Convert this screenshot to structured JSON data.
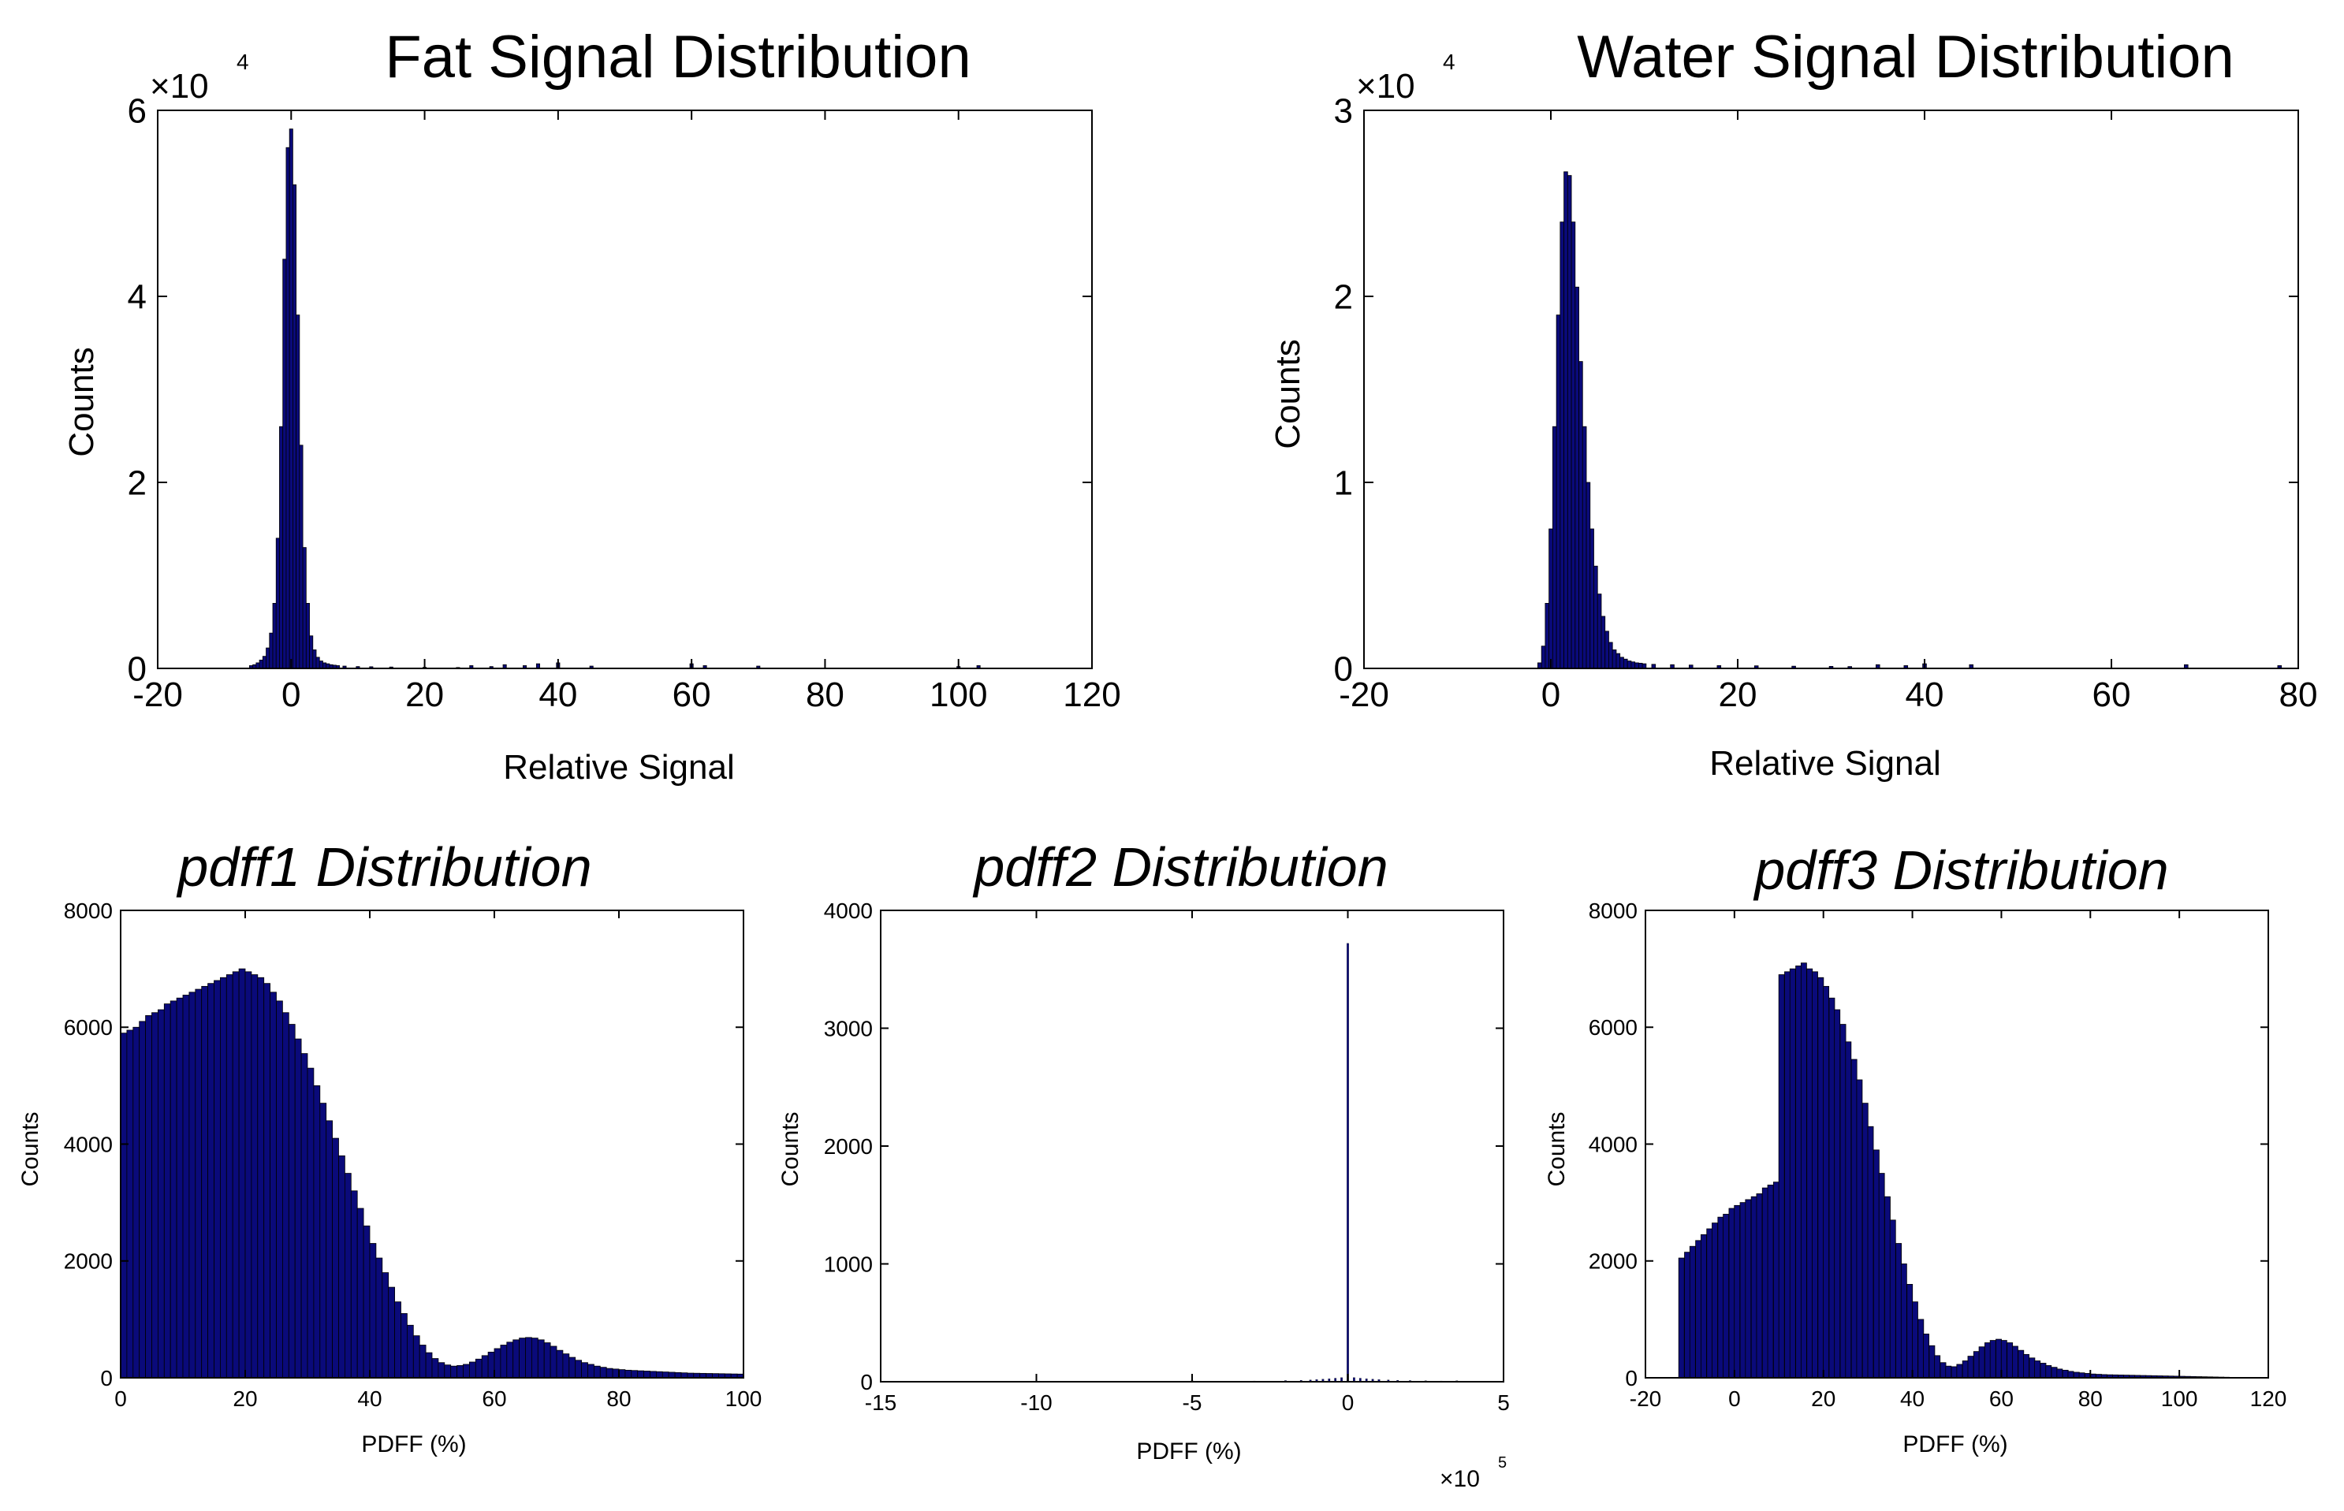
{
  "colors": {
    "bar_fill": "#0a0a7a",
    "bar_edge": "#000000",
    "axis": "#000000"
  },
  "chart_data": [
    {
      "id": "fat",
      "type": "bar",
      "title": "Fat Signal Distribution",
      "title_italic": false,
      "xlabel": "Relative Signal",
      "ylabel": "Counts",
      "xlim": [
        -20,
        120
      ],
      "ylim": [
        0,
        60000
      ],
      "xticks": [
        -20,
        0,
        20,
        40,
        60,
        80,
        100,
        120
      ],
      "xtick_labels": [
        "-20",
        "0",
        "20",
        "40",
        "60",
        "80",
        "100",
        "120"
      ],
      "yticks": [
        0,
        20000,
        40000,
        60000
      ],
      "ytick_labels": [
        "0",
        "2",
        "4",
        "6"
      ],
      "exponent": "4",
      "exponent_position": "top-left",
      "bin_width": 0.5,
      "x": [
        -6,
        -5.5,
        -5,
        -4.5,
        -4,
        -3.5,
        -3,
        -2.5,
        -2,
        -1.5,
        -1,
        -0.5,
        0,
        0.5,
        1,
        1.5,
        2,
        2.5,
        3,
        3.5,
        4,
        4.5,
        5,
        5.5,
        6,
        6.5,
        7,
        8,
        10,
        12,
        15,
        20,
        25,
        27,
        30,
        32,
        35,
        37,
        40,
        45,
        60,
        62,
        70,
        100,
        103
      ],
      "values": [
        300,
        400,
        600,
        900,
        1300,
        2200,
        3800,
        7000,
        14000,
        26000,
        44000,
        56000,
        58000,
        52000,
        38000,
        24000,
        13000,
        7000,
        3500,
        2000,
        1200,
        800,
        600,
        500,
        400,
        350,
        300,
        250,
        200,
        180,
        150,
        120,
        100,
        300,
        200,
        400,
        300,
        500,
        600,
        250,
        500,
        300,
        250,
        200,
        300
      ]
    },
    {
      "id": "water",
      "type": "bar",
      "title": "Water Signal Distribution",
      "title_italic": false,
      "xlabel": "Relative Signal",
      "ylabel": "Counts",
      "xlim": [
        -20,
        80
      ],
      "ylim": [
        0,
        30000
      ],
      "xticks": [
        -20,
        0,
        20,
        40,
        60,
        80
      ],
      "xtick_labels": [
        "-20",
        "0",
        "20",
        "40",
        "60",
        "80"
      ],
      "yticks": [
        0,
        10000,
        20000,
        30000
      ],
      "ytick_labels": [
        "0",
        "1",
        "2",
        "3"
      ],
      "exponent": "4",
      "exponent_position": "top-left",
      "bin_width": 0.4,
      "x": [
        -1.2,
        -0.8,
        -0.4,
        0,
        0.4,
        0.8,
        1.2,
        1.6,
        2,
        2.4,
        2.8,
        3.2,
        3.6,
        4,
        4.4,
        4.8,
        5.2,
        5.6,
        6,
        6.4,
        6.8,
        7.2,
        7.6,
        8,
        8.4,
        8.8,
        9.2,
        9.6,
        10,
        11,
        13,
        15,
        18,
        22,
        26,
        30,
        32,
        35,
        38,
        40,
        45,
        68,
        78
      ],
      "values": [
        300,
        1200,
        3500,
        7500,
        13000,
        19000,
        24000,
        26700,
        26500,
        24000,
        20500,
        16500,
        13000,
        10000,
        7500,
        5500,
        4000,
        2800,
        2000,
        1400,
        1000,
        800,
        600,
        500,
        400,
        350,
        300,
        280,
        250,
        220,
        200,
        180,
        150,
        140,
        120,
        110,
        100,
        200,
        150,
        250,
        200,
        200,
        150
      ]
    },
    {
      "id": "pdff1",
      "type": "bar",
      "title": "pdff1 Distribution",
      "title_italic": true,
      "xlabel": "PDFF (%)",
      "ylabel": "Counts",
      "xlim": [
        0,
        100
      ],
      "ylim": [
        0,
        8000
      ],
      "xticks": [
        0,
        20,
        40,
        60,
        80,
        100
      ],
      "xtick_labels": [
        "0",
        "20",
        "40",
        "60",
        "80",
        "100"
      ],
      "yticks": [
        0,
        2000,
        4000,
        6000,
        8000
      ],
      "ytick_labels": [
        "0",
        "2000",
        "4000",
        "6000",
        "8000"
      ],
      "exponent": "",
      "bin_width": 1,
      "x": [
        0.5,
        1.5,
        2.5,
        3.5,
        4.5,
        5.5,
        6.5,
        7.5,
        8.5,
        9.5,
        10.5,
        11.5,
        12.5,
        13.5,
        14.5,
        15.5,
        16.5,
        17.5,
        18.5,
        19.5,
        20.5,
        21.5,
        22.5,
        23.5,
        24.5,
        25.5,
        26.5,
        27.5,
        28.5,
        29.5,
        30.5,
        31.5,
        32.5,
        33.5,
        34.5,
        35.5,
        36.5,
        37.5,
        38.5,
        39.5,
        40.5,
        41.5,
        42.5,
        43.5,
        44.5,
        45.5,
        46.5,
        47.5,
        48.5,
        49.5,
        50.5,
        51.5,
        52.5,
        53.5,
        54.5,
        55.5,
        56.5,
        57.5,
        58.5,
        59.5,
        60.5,
        61.5,
        62.5,
        63.5,
        64.5,
        65.5,
        66.5,
        67.5,
        68.5,
        69.5,
        70.5,
        71.5,
        72.5,
        73.5,
        74.5,
        75.5,
        76.5,
        77.5,
        78.5,
        79.5,
        80.5,
        81.5,
        82.5,
        83.5,
        84.5,
        85.5,
        86.5,
        87.5,
        88.5,
        89.5,
        90.5,
        91.5,
        92.5,
        93.5,
        94.5,
        95.5,
        96.5,
        97.5,
        98.5,
        99.5
      ],
      "values": [
        5900,
        5950,
        6000,
        6100,
        6200,
        6250,
        6300,
        6400,
        6450,
        6500,
        6550,
        6600,
        6650,
        6700,
        6750,
        6800,
        6850,
        6900,
        6950,
        7000,
        6950,
        6900,
        6850,
        6750,
        6600,
        6450,
        6250,
        6050,
        5800,
        5550,
        5300,
        5000,
        4700,
        4400,
        4100,
        3800,
        3500,
        3200,
        2900,
        2600,
        2300,
        2050,
        1800,
        1550,
        1300,
        1100,
        900,
        720,
        560,
        430,
        330,
        260,
        220,
        200,
        210,
        230,
        270,
        320,
        380,
        440,
        500,
        560,
        610,
        650,
        680,
        690,
        680,
        650,
        600,
        540,
        470,
        410,
        350,
        300,
        260,
        230,
        200,
        180,
        160,
        150,
        140,
        130,
        125,
        120,
        115,
        110,
        105,
        100,
        95,
        90,
        85,
        80,
        78,
        76,
        74,
        72,
        70,
        68,
        66,
        64
      ]
    },
    {
      "id": "pdff2",
      "type": "bar",
      "title": "pdff2 Distribution",
      "title_italic": true,
      "xlabel": "PDFF (%)",
      "ylabel": "Counts",
      "xlim": [
        -15,
        5
      ],
      "ylim": [
        0,
        4000
      ],
      "xticks": [
        -15,
        -10,
        -5,
        0,
        5
      ],
      "xtick_labels": [
        "-15",
        "-10",
        "-5",
        "0",
        "5"
      ],
      "yticks": [
        0,
        1000,
        2000,
        3000,
        4000
      ],
      "ytick_labels": [
        "0",
        "1000",
        "2000",
        "3000",
        "4000"
      ],
      "exponent": "5",
      "exponent_position": "bottom-right",
      "bin_width": 0.06,
      "x": [
        -5,
        -3,
        -2,
        -1.5,
        -1.2,
        -1,
        -0.8,
        -0.6,
        -0.4,
        -0.2,
        0,
        0.2,
        0.4,
        0.6,
        0.8,
        1,
        1.3,
        1.6,
        2,
        2.5,
        3,
        3.5
      ],
      "values": [
        8,
        6,
        10,
        12,
        15,
        18,
        22,
        25,
        30,
        35,
        3720,
        35,
        30,
        25,
        22,
        18,
        15,
        12,
        10,
        8,
        6,
        8
      ]
    },
    {
      "id": "pdff3",
      "type": "bar",
      "title": "pdff3 Distribution",
      "title_italic": true,
      "xlabel": "PDFF (%)",
      "ylabel": "Counts",
      "xlim": [
        -20,
        120
      ],
      "ylim": [
        0,
        8000
      ],
      "xticks": [
        -20,
        0,
        20,
        40,
        60,
        80,
        100,
        120
      ],
      "xtick_labels": [
        "-20",
        "0",
        "20",
        "40",
        "60",
        "80",
        "100",
        "120"
      ],
      "yticks": [
        0,
        2000,
        4000,
        6000,
        8000
      ],
      "ytick_labels": [
        "0",
        "2000",
        "4000",
        "6000",
        "8000"
      ],
      "exponent": "",
      "bin_width": 1.25,
      "x": [
        -11.9,
        -10.6,
        -9.4,
        -8.1,
        -6.9,
        -5.6,
        -4.4,
        -3.1,
        -1.9,
        -0.6,
        0.6,
        1.9,
        3.1,
        4.4,
        5.6,
        6.9,
        8.1,
        9.4,
        10.6,
        11.9,
        13.1,
        14.4,
        15.6,
        16.9,
        18.1,
        19.4,
        20.6,
        21.9,
        23.1,
        24.4,
        25.6,
        26.9,
        28.1,
        29.4,
        30.6,
        31.9,
        33.1,
        34.4,
        35.6,
        36.9,
        38.1,
        39.4,
        40.6,
        41.9,
        43.1,
        44.4,
        45.6,
        46.9,
        48.1,
        49.4,
        50.6,
        51.9,
        53.1,
        54.4,
        55.6,
        56.9,
        58.1,
        59.4,
        60.6,
        61.9,
        63.1,
        64.4,
        65.6,
        66.9,
        68.1,
        69.4,
        70.6,
        71.9,
        73.1,
        74.4,
        75.6,
        76.9,
        78.1,
        79.4,
        80.6,
        81.9,
        83.1,
        84.4,
        85.6,
        86.9,
        88.1,
        89.4,
        90.6,
        91.9,
        93.1,
        94.4,
        95.6,
        96.9,
        98.1,
        99.4,
        100.6,
        101.9,
        103.1,
        104.4,
        105.6,
        106.9,
        108.1,
        109.4,
        110.6,
        111.9
      ],
      "values": [
        2050,
        2150,
        2250,
        2350,
        2450,
        2550,
        2650,
        2750,
        2800,
        2900,
        2950,
        3000,
        3050,
        3100,
        3150,
        3250,
        3300,
        3350,
        6900,
        6950,
        7000,
        7050,
        7100,
        7000,
        6950,
        6850,
        6700,
        6500,
        6300,
        6050,
        5750,
        5450,
        5100,
        4700,
        4300,
        3900,
        3500,
        3100,
        2700,
        2300,
        1950,
        1600,
        1300,
        1000,
        750,
        550,
        380,
        260,
        200,
        190,
        230,
        290,
        370,
        450,
        530,
        600,
        640,
        660,
        640,
        600,
        540,
        470,
        400,
        340,
        290,
        250,
        210,
        180,
        150,
        130,
        110,
        95,
        85,
        75,
        65,
        60,
        55,
        52,
        50,
        48,
        46,
        44,
        42,
        40,
        38,
        36,
        34,
        32,
        30,
        28,
        26,
        24,
        22,
        20,
        18,
        16,
        14,
        12,
        10,
        8
      ]
    }
  ]
}
